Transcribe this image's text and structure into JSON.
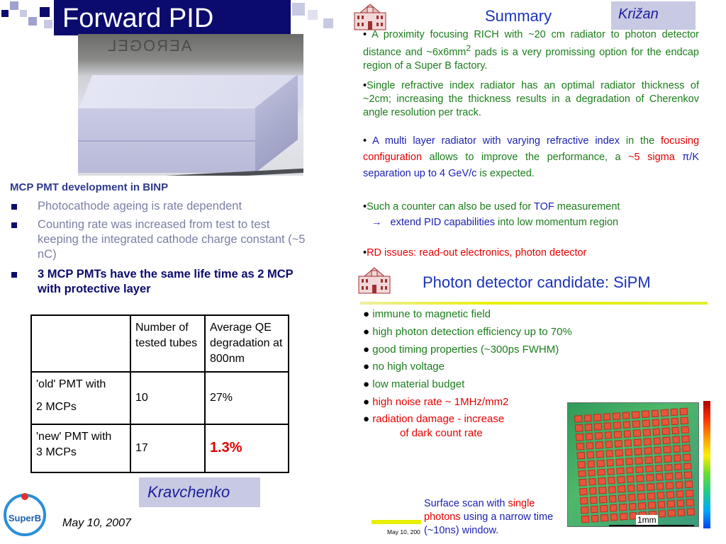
{
  "title": "Forward PID",
  "photo": {
    "label": "AEROGEL"
  },
  "left": {
    "heading": "MCP PMT development in BINP",
    "bullets": [
      "Photocathode ageing is rate dependent",
      "Counting rate was increased from test to test keeping the integrated cathode charge constant  (~5 nC)",
      "3 MCP PMTs have the same life time as 2 MCP with protective layer"
    ]
  },
  "table": {
    "headers": [
      "",
      "Number of tested tubes",
      "Average QE degradation at 800nm"
    ],
    "rows": [
      {
        "name_line1": "'old' PMT with",
        "name_line2": "2 MCPs",
        "tubes": "10",
        "degradation": "27%"
      },
      {
        "name_line1": "'new' PMT with",
        "name_line2": "3 MCPs",
        "tubes": "17",
        "degradation": "1.3%"
      }
    ]
  },
  "author_left": "Kravchenko",
  "date_left": "May 10, 2007",
  "logo_text": "SuperB",
  "summary": {
    "title": "Summary",
    "author": "Križan",
    "p1": {
      "text_a": "A proximity focusing RICH with ~20 cm radiator to photon detector distance and ~6x6mm",
      "sup": "2",
      "text_b": " pads is a very promissing option for the endcap region of a Super B factory."
    },
    "p2": "Single refractive index radiator has an optimal radiator thickness of ~2cm; increasing the thickness results in a degradation of Cherenkov angle resolution per track.",
    "p3": {
      "a": "A multi layer radiator with varying refractive index",
      "b": " in the ",
      "c": "focusing configuration",
      "d": " allows to improve the performance, a ",
      "e": "~5 sigma",
      "f": "  π/K separation up to 4 GeV/c",
      "g": " is expected."
    },
    "p4": {
      "a": "Such a counter can also be used for ",
      "b": "TOF",
      "c": " measurement",
      "arrow": "→",
      "d": "extend PID capabilities",
      "e": " into low momentum region"
    },
    "p5": {
      "a": "RD issues: read-out electronics, ",
      "b": "photon detector"
    }
  },
  "photon": {
    "title": "Photon detector candidate: SiPM",
    "features": [
      {
        "text": "immune to magnetic field",
        "color": "#1b7d1b"
      },
      {
        "text": "high photon detection efficiency up to 70%",
        "color": "#1b7d1b"
      },
      {
        "text": "good timing properties (~300ps FWHM)",
        "color": "#1b7d1b"
      },
      {
        "text": "no high voltage",
        "color": "#1b7d1b"
      },
      {
        "text": "low material budget",
        "color": "#1b7d1b"
      },
      {
        "text": "high noise rate ~ 1MHz/mm2",
        "color": "#e60000"
      },
      {
        "text": "radiation damage - increase",
        "color": "#e60000"
      },
      {
        "text": "of dark count rate",
        "color": "#e60000"
      }
    ],
    "scan_scale_label": "1mm",
    "caption": {
      "a": "Surface scan with ",
      "b": "single photons",
      "c": " using a narrow time (~10ns) window."
    },
    "date": "May 10, 200"
  }
}
